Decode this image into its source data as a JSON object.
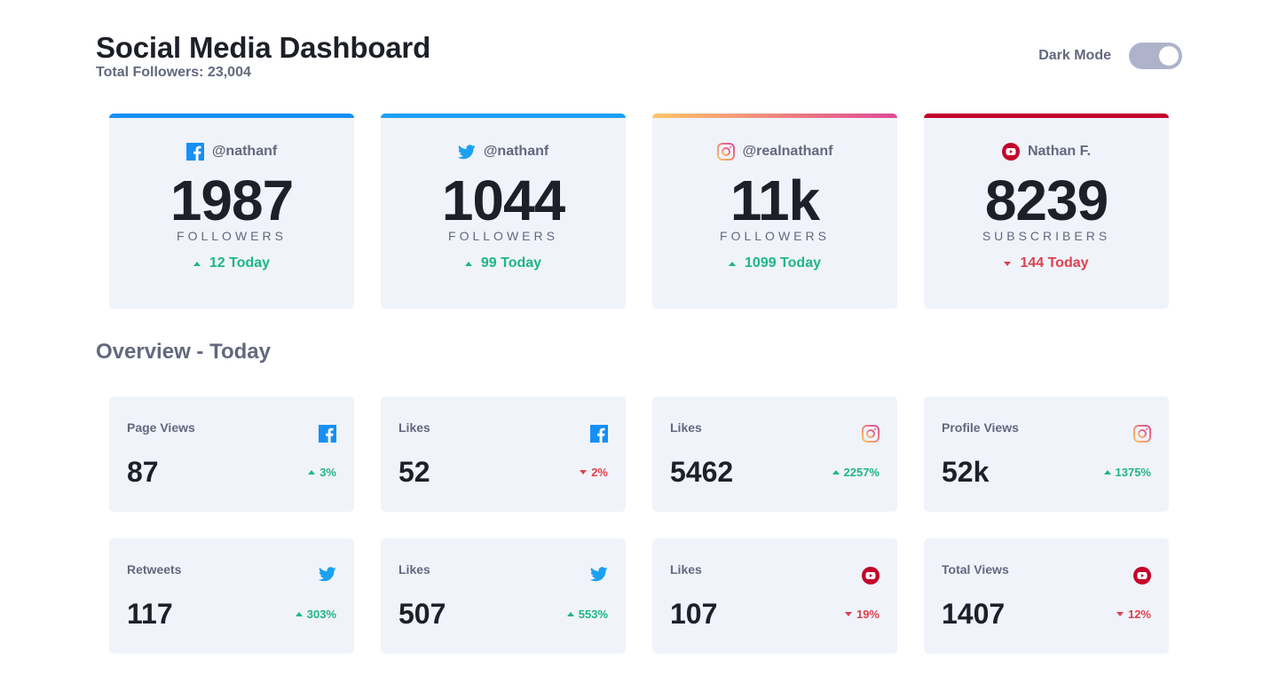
{
  "header": {
    "title": "Social Media Dashboard",
    "subtitle": "Total Followers: 23,004",
    "dark_mode_label": "Dark Mode",
    "dark_mode_on": true
  },
  "colors": {
    "facebook": "#178FF5",
    "twitter": "#1CA0F2",
    "instagram_start": "#FDC468",
    "instagram_end": "#DF4996",
    "youtube": "#C4032A",
    "up": "#1EB589",
    "down": "#DC414C"
  },
  "cards": [
    {
      "network": "facebook",
      "icon": "facebook-icon",
      "handle": "@nathanf",
      "count": "1987",
      "unit": "FOLLOWERS",
      "delta": "12 Today",
      "trend": "up"
    },
    {
      "network": "twitter",
      "icon": "twitter-icon",
      "handle": "@nathanf",
      "count": "1044",
      "unit": "FOLLOWERS",
      "delta": "99 Today",
      "trend": "up"
    },
    {
      "network": "instagram",
      "icon": "instagram-icon",
      "handle": "@realnathanf",
      "count": "11k",
      "unit": "FOLLOWERS",
      "delta": "1099 Today",
      "trend": "up"
    },
    {
      "network": "youtube",
      "icon": "youtube-icon",
      "handle": "Nathan F.",
      "count": "8239",
      "unit": "SUBSCRIBERS",
      "delta": "144 Today",
      "trend": "down"
    }
  ],
  "overview": {
    "title": "Overview - Today",
    "items": [
      {
        "label": "Page Views",
        "network": "facebook",
        "value": "87",
        "pct": "3%",
        "trend": "up"
      },
      {
        "label": "Likes",
        "network": "facebook",
        "value": "52",
        "pct": "2%",
        "trend": "down"
      },
      {
        "label": "Likes",
        "network": "instagram",
        "value": "5462",
        "pct": "2257%",
        "trend": "up"
      },
      {
        "label": "Profile Views",
        "network": "instagram",
        "value": "52k",
        "pct": "1375%",
        "trend": "up"
      },
      {
        "label": "Retweets",
        "network": "twitter",
        "value": "117",
        "pct": "303%",
        "trend": "up"
      },
      {
        "label": "Likes",
        "network": "twitter",
        "value": "507",
        "pct": "553%",
        "trend": "up"
      },
      {
        "label": "Likes",
        "network": "youtube",
        "value": "107",
        "pct": "19%",
        "trend": "down"
      },
      {
        "label": "Total Views",
        "network": "youtube",
        "value": "1407",
        "pct": "12%",
        "trend": "down"
      }
    ]
  }
}
